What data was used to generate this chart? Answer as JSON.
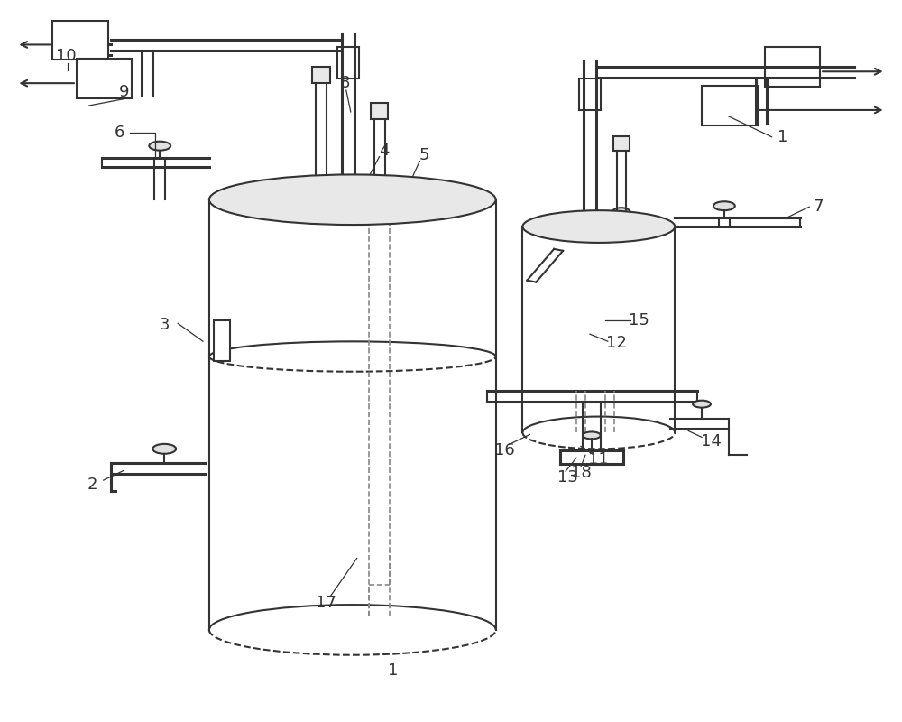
{
  "bg_color": "#ffffff",
  "lc": "#333333",
  "lw": 1.5,
  "tlw": 2.2,
  "fs": 13,
  "figw": 10,
  "figh": 8
}
